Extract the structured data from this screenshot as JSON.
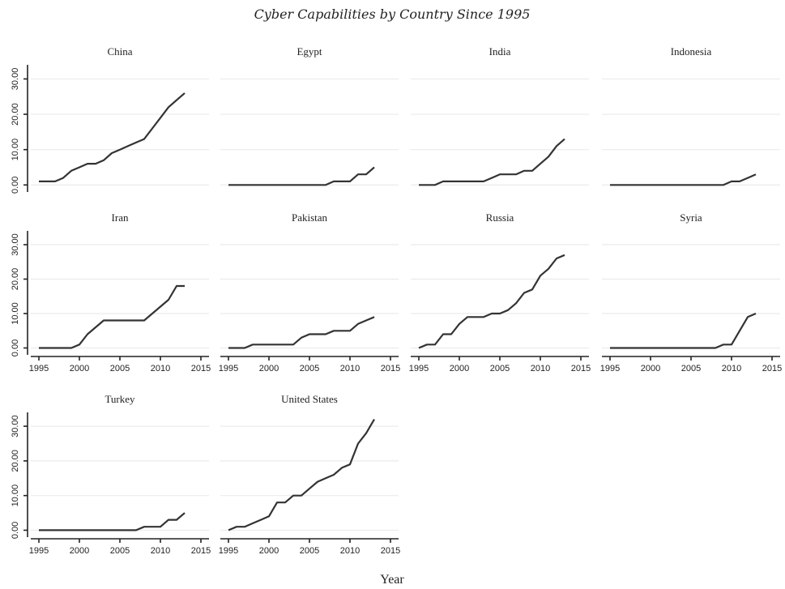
{
  "chart_data": {
    "type": "line",
    "title": "Cyber Capabilities by Country Since 1995",
    "xlabel": "Year",
    "ylabel": "",
    "xlim": [
      1994,
      2016
    ],
    "ylim": [
      -2,
      34
    ],
    "x_ticks": [
      "1995",
      "2000",
      "2005",
      "2010",
      "2015"
    ],
    "y_ticks": [
      "0.00",
      "10.00",
      "20.00",
      "30.00"
    ],
    "grid": true,
    "x": [
      1995,
      1996,
      1997,
      1998,
      1999,
      2000,
      2001,
      2002,
      2003,
      2004,
      2005,
      2006,
      2007,
      2008,
      2009,
      2010,
      2011,
      2012,
      2013
    ],
    "panels": [
      {
        "name": "China",
        "values": [
          1,
          1,
          1,
          2,
          4,
          5,
          6,
          6,
          7,
          9,
          10,
          11,
          12,
          13,
          16,
          19,
          22,
          24,
          26
        ]
      },
      {
        "name": "Egypt",
        "values": [
          0,
          0,
          0,
          0,
          0,
          0,
          0,
          0,
          0,
          0,
          0,
          0,
          0,
          1,
          1,
          1,
          3,
          3,
          5
        ]
      },
      {
        "name": "India",
        "values": [
          0,
          0,
          0,
          1,
          1,
          1,
          1,
          1,
          1,
          2,
          3,
          3,
          3,
          4,
          4,
          6,
          8,
          11,
          13
        ]
      },
      {
        "name": "Indonesia",
        "values": [
          0,
          0,
          0,
          0,
          0,
          0,
          0,
          0,
          0,
          0,
          0,
          0,
          0,
          0,
          0,
          1,
          1,
          2,
          3
        ]
      },
      {
        "name": "Iran",
        "values": [
          0,
          0,
          0,
          0,
          0,
          1,
          4,
          6,
          8,
          8,
          8,
          8,
          8,
          8,
          10,
          12,
          14,
          18,
          18
        ]
      },
      {
        "name": "Pakistan",
        "values": [
          0,
          0,
          0,
          1,
          1,
          1,
          1,
          1,
          1,
          3,
          4,
          4,
          4,
          5,
          5,
          5,
          7,
          8,
          9
        ]
      },
      {
        "name": "Russia",
        "values": [
          0,
          1,
          1,
          4,
          4,
          7,
          9,
          9,
          9,
          10,
          10,
          11,
          13,
          16,
          17,
          21,
          23,
          26,
          27
        ]
      },
      {
        "name": "Syria",
        "values": [
          0,
          0,
          0,
          0,
          0,
          0,
          0,
          0,
          0,
          0,
          0,
          0,
          0,
          0,
          1,
          1,
          5,
          9,
          10
        ]
      },
      {
        "name": "Turkey",
        "values": [
          0,
          0,
          0,
          0,
          0,
          0,
          0,
          0,
          0,
          0,
          0,
          0,
          0,
          1,
          1,
          1,
          3,
          3,
          5
        ]
      },
      {
        "name": "United States",
        "values": [
          0,
          1,
          1,
          2,
          3,
          4,
          8,
          8,
          10,
          10,
          12,
          14,
          15,
          16,
          18,
          19,
          25,
          28,
          32
        ]
      }
    ]
  }
}
